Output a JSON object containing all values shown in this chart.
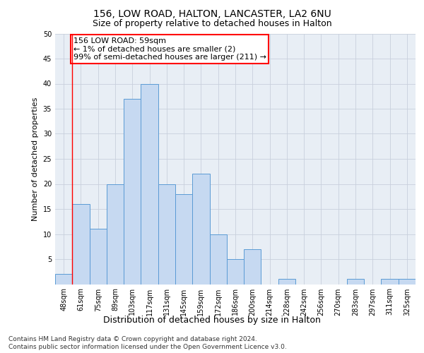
{
  "title1": "156, LOW ROAD, HALTON, LANCASTER, LA2 6NU",
  "title2": "Size of property relative to detached houses in Halton",
  "xlabel": "Distribution of detached houses by size in Halton",
  "ylabel": "Number of detached properties",
  "bar_labels": [
    "48sqm",
    "61sqm",
    "75sqm",
    "89sqm",
    "103sqm",
    "117sqm",
    "131sqm",
    "145sqm",
    "159sqm",
    "172sqm",
    "186sqm",
    "200sqm",
    "214sqm",
    "228sqm",
    "242sqm",
    "256sqm",
    "270sqm",
    "283sqm",
    "297sqm",
    "311sqm",
    "325sqm"
  ],
  "bar_values": [
    2,
    16,
    11,
    20,
    37,
    40,
    20,
    18,
    22,
    10,
    5,
    7,
    0,
    1,
    0,
    0,
    0,
    1,
    0,
    1,
    1
  ],
  "bar_color": "#c6d9f1",
  "bar_edge_color": "#5b9bd5",
  "red_line_x": 0.5,
  "annotation_text": "156 LOW ROAD: 59sqm\n← 1% of detached houses are smaller (2)\n99% of semi-detached houses are larger (211) →",
  "annotation_box_color": "#ffffff",
  "annotation_box_edge_color": "#ff0000",
  "ylim": [
    0,
    50
  ],
  "yticks": [
    0,
    5,
    10,
    15,
    20,
    25,
    30,
    35,
    40,
    45,
    50
  ],
  "grid_color": "#c8d0dc",
  "background_color": "#e8eef5",
  "footer_line1": "Contains HM Land Registry data © Crown copyright and database right 2024.",
  "footer_line2": "Contains public sector information licensed under the Open Government Licence v3.0.",
  "title1_fontsize": 10,
  "title2_fontsize": 9,
  "xlabel_fontsize": 9,
  "ylabel_fontsize": 8,
  "tick_fontsize": 7,
  "annotation_fontsize": 8,
  "footer_fontsize": 6.5
}
